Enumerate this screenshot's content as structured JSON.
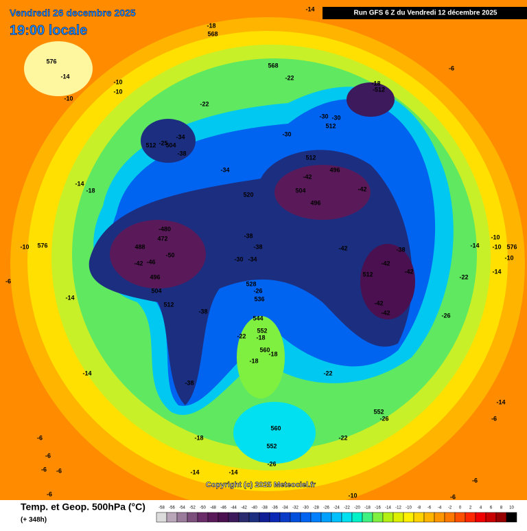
{
  "header": {
    "date": "Vendredi 26 decembre 2025",
    "time": "19:00 locale",
    "run": "Run GFS 6 Z du Vendredi 12 décembre 2025"
  },
  "footer": {
    "title": "Temp. et Geop. 500hPa (°C)",
    "lead": "(+ 348h)",
    "copyright": "Copyright (c) 2025 Meteociel.fr"
  },
  "scale": {
    "ticks": [
      -58,
      -56,
      -54,
      -52,
      -50,
      -48,
      -46,
      -44,
      -42,
      -40,
      -38,
      -36,
      -34,
      -32,
      -30,
      -28,
      -26,
      -24,
      -22,
      -20,
      -18,
      -16,
      -14,
      -12,
      -10,
      -8,
      -6,
      -4,
      -2,
      0,
      2,
      4,
      6,
      8,
      10
    ],
    "colors": [
      "#dcdcdc",
      "#b9a6b9",
      "#9b7b9b",
      "#7d4f7d",
      "#6a2d6a",
      "#5a1a5a",
      "#4a104f",
      "#3c1a5c",
      "#2a2a6e",
      "#1c2e80",
      "#101e96",
      "#0a28b4",
      "#0a3cc8",
      "#0050dc",
      "#0064f0",
      "#0080ff",
      "#00a0ff",
      "#00c0ff",
      "#00e0f0",
      "#00f0c8",
      "#40f080",
      "#80f040",
      "#b4f014",
      "#dcf000",
      "#fff000",
      "#ffd200",
      "#ffb400",
      "#ff9600",
      "#ff7800",
      "#ff5000",
      "#ff2800",
      "#f00000",
      "#c80000",
      "#960000",
      "#000000"
    ]
  },
  "map_labels": [
    "-14",
    "-18",
    "568",
    "576",
    "-14",
    "-10",
    "-10",
    "-10",
    "568",
    "-22",
    "-6",
    "-18",
    "-512",
    "-22",
    "-30",
    "-30",
    "512",
    "-30",
    "-34",
    "512",
    "-25",
    "504",
    "-38",
    "512",
    "-34",
    "496",
    "-42",
    "-42",
    "504",
    "520",
    "496",
    "-14",
    "-18",
    "-480",
    "472",
    "488",
    "-50",
    "-42",
    "-46",
    "-38",
    "-38",
    "-30",
    "-34",
    "-42",
    "-38",
    "-42",
    "-42",
    "512",
    "496",
    "504",
    "512",
    "528",
    "-26",
    "536",
    "-42",
    "-42",
    "-22",
    "-26",
    "-38",
    "544",
    "-22",
    "552",
    "-18",
    "560",
    "-18",
    "-18",
    "-22",
    "-38",
    "-14",
    "-10",
    "576",
    "-6",
    "-14",
    "-14",
    "-10",
    "-10",
    "576",
    "-10",
    "-14",
    "552",
    "-26",
    "-18",
    "560",
    "-22",
    "552",
    "-26",
    "-14",
    "-14",
    "-6",
    "-6",
    "-6",
    "-6",
    "-6",
    "-10",
    "-6",
    "-6",
    "-14",
    "-6"
  ]
}
